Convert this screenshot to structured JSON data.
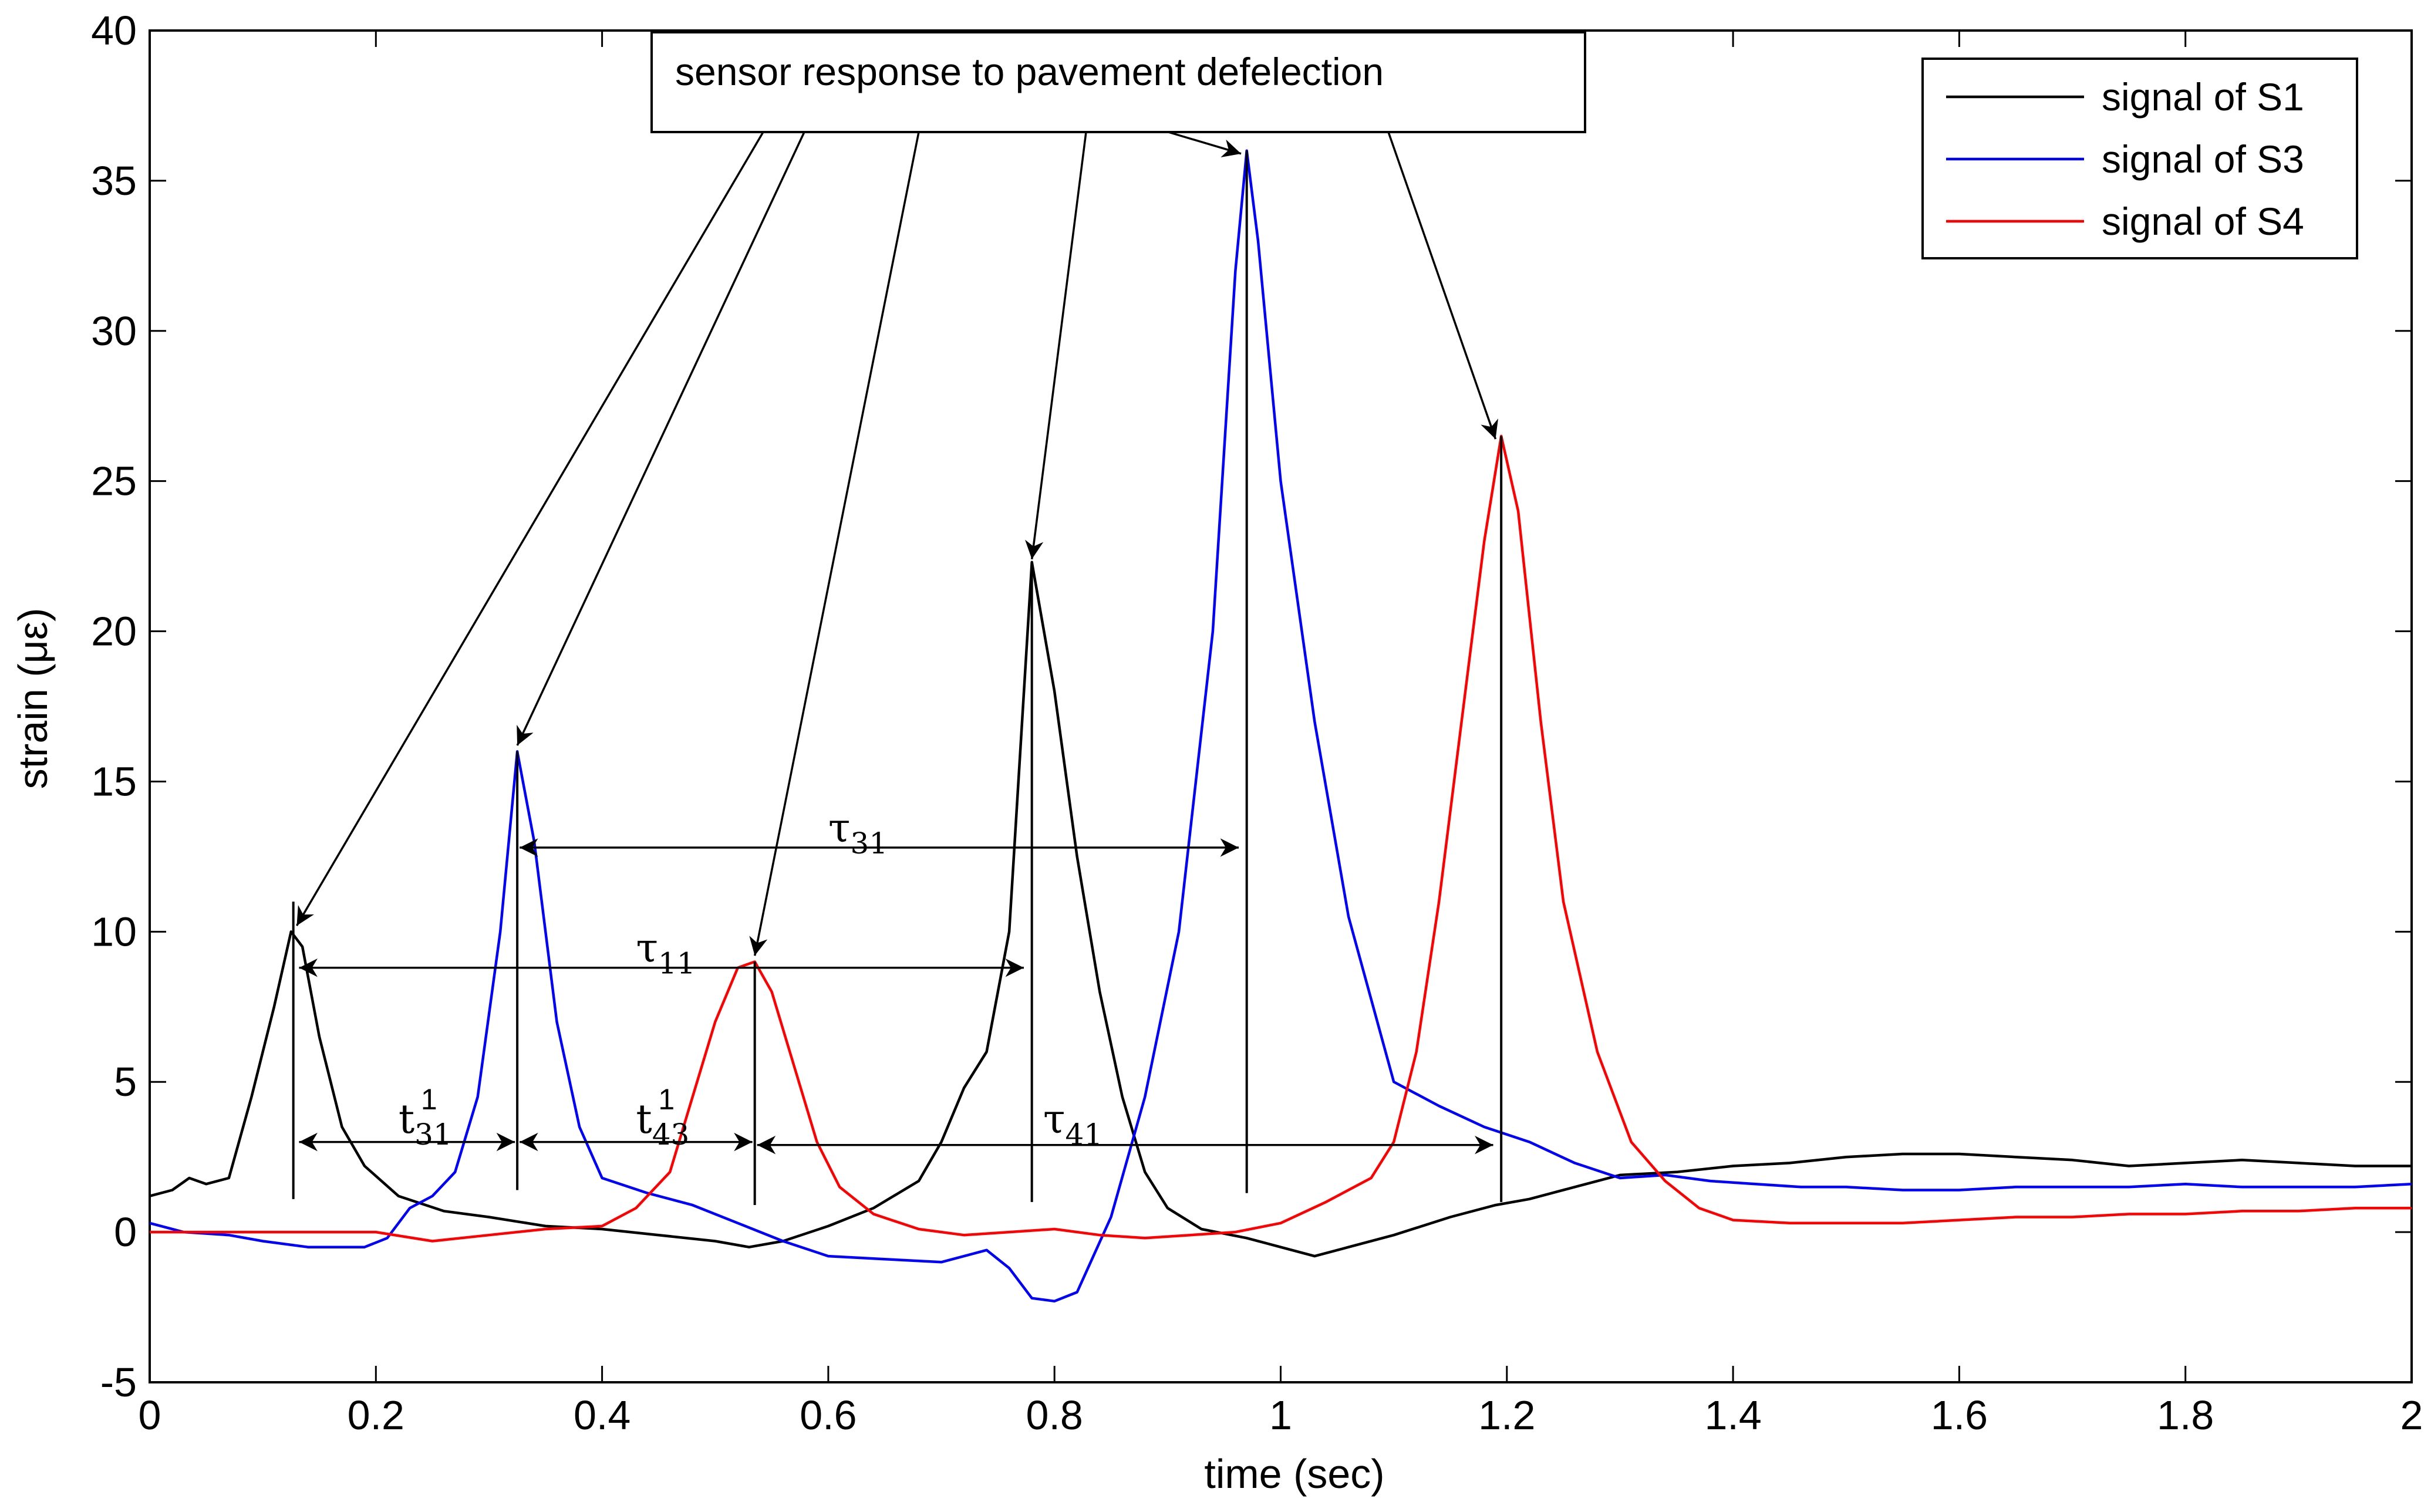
{
  "chart_data": {
    "type": "line",
    "title": "",
    "xlabel": "time (sec)",
    "ylabel": "strain  (με)",
    "xlim": [
      0,
      2
    ],
    "ylim": [
      -5,
      40
    ],
    "x_ticks": [
      0,
      0.2,
      0.4,
      0.6,
      0.8,
      1,
      1.2,
      1.4,
      1.6,
      1.8,
      2
    ],
    "y_ticks": [
      -5,
      0,
      5,
      10,
      15,
      20,
      25,
      30,
      35,
      40
    ],
    "x_tick_labels": [
      "0",
      "0.2",
      "0.4",
      "0.6",
      "0.8",
      "1",
      "1.2",
      "1.4",
      "1.6",
      "1.8",
      "2"
    ],
    "y_tick_labels": [
      "-5",
      "0",
      "5",
      "10",
      "15",
      "20",
      "25",
      "30",
      "35",
      "40"
    ],
    "grid": false,
    "legend_position": "top-right",
    "series": [
      {
        "name": "signal of S1",
        "color": "#000000",
        "points": [
          [
            0,
            1.2
          ],
          [
            0.02,
            1.4
          ],
          [
            0.035,
            1.8
          ],
          [
            0.05,
            1.6
          ],
          [
            0.07,
            1.8
          ],
          [
            0.09,
            4.5
          ],
          [
            0.11,
            7.5
          ],
          [
            0.125,
            10.0
          ],
          [
            0.135,
            9.5
          ],
          [
            0.15,
            6.5
          ],
          [
            0.17,
            3.5
          ],
          [
            0.19,
            2.2
          ],
          [
            0.22,
            1.2
          ],
          [
            0.26,
            0.7
          ],
          [
            0.3,
            0.5
          ],
          [
            0.35,
            0.2
          ],
          [
            0.4,
            0.1
          ],
          [
            0.45,
            -0.1
          ],
          [
            0.5,
            -0.3
          ],
          [
            0.53,
            -0.5
          ],
          [
            0.56,
            -0.3
          ],
          [
            0.6,
            0.2
          ],
          [
            0.64,
            0.8
          ],
          [
            0.68,
            1.7
          ],
          [
            0.7,
            3.0
          ],
          [
            0.72,
            4.8
          ],
          [
            0.74,
            6.0
          ],
          [
            0.76,
            10.0
          ],
          [
            0.78,
            22.3
          ],
          [
            0.8,
            18.0
          ],
          [
            0.82,
            12.5
          ],
          [
            0.84,
            8.0
          ],
          [
            0.86,
            4.5
          ],
          [
            0.88,
            2.0
          ],
          [
            0.9,
            0.8
          ],
          [
            0.93,
            0.1
          ],
          [
            0.97,
            -0.2
          ],
          [
            1.0,
            -0.5
          ],
          [
            1.03,
            -0.8
          ],
          [
            1.06,
            -0.5
          ],
          [
            1.1,
            -0.1
          ],
          [
            1.15,
            0.5
          ],
          [
            1.19,
            0.9
          ],
          [
            1.22,
            1.1
          ],
          [
            1.26,
            1.5
          ],
          [
            1.3,
            1.9
          ],
          [
            1.35,
            2.0
          ],
          [
            1.4,
            2.2
          ],
          [
            1.45,
            2.3
          ],
          [
            1.5,
            2.5
          ],
          [
            1.55,
            2.6
          ],
          [
            1.6,
            2.6
          ],
          [
            1.65,
            2.5
          ],
          [
            1.7,
            2.4
          ],
          [
            1.75,
            2.2
          ],
          [
            1.8,
            2.3
          ],
          [
            1.85,
            2.4
          ],
          [
            1.9,
            2.3
          ],
          [
            1.95,
            2.2
          ],
          [
            2.0,
            2.2
          ]
        ]
      },
      {
        "name": "signal of S3",
        "color": "#0000ff",
        "points": [
          [
            0,
            0.3
          ],
          [
            0.03,
            0.0
          ],
          [
            0.07,
            -0.1
          ],
          [
            0.1,
            -0.3
          ],
          [
            0.14,
            -0.5
          ],
          [
            0.19,
            -0.5
          ],
          [
            0.21,
            -0.2
          ],
          [
            0.23,
            0.8
          ],
          [
            0.25,
            1.2
          ],
          [
            0.27,
            2.0
          ],
          [
            0.29,
            4.5
          ],
          [
            0.31,
            10.0
          ],
          [
            0.325,
            16.0
          ],
          [
            0.34,
            13.0
          ],
          [
            0.36,
            7.0
          ],
          [
            0.38,
            3.5
          ],
          [
            0.4,
            1.8
          ],
          [
            0.44,
            1.3
          ],
          [
            0.48,
            0.9
          ],
          [
            0.52,
            0.3
          ],
          [
            0.56,
            -0.3
          ],
          [
            0.6,
            -0.8
          ],
          [
            0.65,
            -0.9
          ],
          [
            0.7,
            -1.0
          ],
          [
            0.74,
            -0.6
          ],
          [
            0.76,
            -1.2
          ],
          [
            0.78,
            -2.2
          ],
          [
            0.8,
            -2.3
          ],
          [
            0.82,
            -2.0
          ],
          [
            0.85,
            0.5
          ],
          [
            0.88,
            4.5
          ],
          [
            0.91,
            10.0
          ],
          [
            0.94,
            20.0
          ],
          [
            0.96,
            32.0
          ],
          [
            0.97,
            36.0
          ],
          [
            0.98,
            33.0
          ],
          [
            1.0,
            25.0
          ],
          [
            1.03,
            17.0
          ],
          [
            1.06,
            10.5
          ],
          [
            1.1,
            5.0
          ],
          [
            1.14,
            4.2
          ],
          [
            1.18,
            3.5
          ],
          [
            1.22,
            3.0
          ],
          [
            1.26,
            2.3
          ],
          [
            1.3,
            1.8
          ],
          [
            1.34,
            1.9
          ],
          [
            1.38,
            1.7
          ],
          [
            1.42,
            1.6
          ],
          [
            1.46,
            1.5
          ],
          [
            1.5,
            1.5
          ],
          [
            1.55,
            1.4
          ],
          [
            1.6,
            1.4
          ],
          [
            1.65,
            1.5
          ],
          [
            1.7,
            1.5
          ],
          [
            1.75,
            1.5
          ],
          [
            1.8,
            1.6
          ],
          [
            1.85,
            1.5
          ],
          [
            1.9,
            1.5
          ],
          [
            1.95,
            1.5
          ],
          [
            2.0,
            1.6
          ]
        ]
      },
      {
        "name": "signal of S4",
        "color": "#ff0000",
        "points": [
          [
            0,
            0.0
          ],
          [
            0.05,
            0.0
          ],
          [
            0.1,
            0.0
          ],
          [
            0.15,
            0.0
          ],
          [
            0.2,
            0.0
          ],
          [
            0.25,
            -0.3
          ],
          [
            0.3,
            -0.1
          ],
          [
            0.35,
            0.1
          ],
          [
            0.4,
            0.2
          ],
          [
            0.43,
            0.8
          ],
          [
            0.46,
            2.0
          ],
          [
            0.48,
            4.5
          ],
          [
            0.5,
            7.0
          ],
          [
            0.52,
            8.8
          ],
          [
            0.535,
            9.0
          ],
          [
            0.55,
            8.0
          ],
          [
            0.57,
            5.5
          ],
          [
            0.59,
            3.0
          ],
          [
            0.61,
            1.5
          ],
          [
            0.64,
            0.6
          ],
          [
            0.68,
            0.1
          ],
          [
            0.72,
            -0.1
          ],
          [
            0.76,
            0.0
          ],
          [
            0.8,
            0.1
          ],
          [
            0.84,
            -0.1
          ],
          [
            0.88,
            -0.2
          ],
          [
            0.92,
            -0.1
          ],
          [
            0.96,
            0.0
          ],
          [
            1.0,
            0.3
          ],
          [
            1.04,
            1.0
          ],
          [
            1.08,
            1.8
          ],
          [
            1.1,
            3.0
          ],
          [
            1.12,
            6.0
          ],
          [
            1.14,
            11.0
          ],
          [
            1.16,
            17.0
          ],
          [
            1.18,
            23.0
          ],
          [
            1.195,
            26.5
          ],
          [
            1.21,
            24.0
          ],
          [
            1.23,
            17.0
          ],
          [
            1.25,
            11.0
          ],
          [
            1.28,
            6.0
          ],
          [
            1.31,
            3.0
          ],
          [
            1.34,
            1.7
          ],
          [
            1.37,
            0.8
          ],
          [
            1.4,
            0.4
          ],
          [
            1.45,
            0.3
          ],
          [
            1.5,
            0.3
          ],
          [
            1.55,
            0.3
          ],
          [
            1.6,
            0.4
          ],
          [
            1.65,
            0.5
          ],
          [
            1.7,
            0.5
          ],
          [
            1.75,
            0.6
          ],
          [
            1.8,
            0.6
          ],
          [
            1.85,
            0.7
          ],
          [
            1.9,
            0.7
          ],
          [
            1.95,
            0.8
          ],
          [
            2.0,
            0.8
          ]
        ]
      }
    ],
    "annotations": {
      "box_label": "sensor response to pavement defelection",
      "peak_arrow_targets": [
        [
          0.13,
          10.2
        ],
        [
          0.325,
          16.2
        ],
        [
          0.535,
          9.2
        ],
        [
          0.78,
          22.4
        ],
        [
          0.965,
          35.9
        ],
        [
          1.19,
          26.4
        ]
      ],
      "vertical_markers": [
        {
          "x": 0.127,
          "y_bottom": 1.1,
          "y_top": 11.0
        },
        {
          "x": 0.325,
          "y_bottom": 1.4,
          "y_top": 16.0
        },
        {
          "x": 0.535,
          "y_bottom": 0.9,
          "y_top": 9.0
        },
        {
          "x": 0.78,
          "y_bottom": 1.0,
          "y_top": 22.3
        },
        {
          "x": 0.97,
          "y_bottom": 1.3,
          "y_top": 36.0
        },
        {
          "x": 1.195,
          "y_bottom": 1.0,
          "y_top": 26.5
        }
      ],
      "intervals": [
        {
          "symbol": "τ",
          "sub": "31",
          "sup": "",
          "x1": 0.325,
          "x2": 0.965,
          "y": 12.8,
          "label_x": 0.6,
          "label_y": 13.0
        },
        {
          "symbol": "τ",
          "sub": "11",
          "sup": "",
          "x1": 0.13,
          "x2": 0.775,
          "y": 8.8,
          "label_x": 0.43,
          "label_y": 9.0
        },
        {
          "symbol": "t",
          "sub": "31",
          "sup": "1",
          "x1": 0.13,
          "x2": 0.325,
          "y": 3.0,
          "label_x": 0.22,
          "label_y": 3.3
        },
        {
          "symbol": "t",
          "sub": "43",
          "sup": "1",
          "x1": 0.325,
          "x2": 0.535,
          "y": 3.0,
          "label_x": 0.43,
          "label_y": 3.3
        },
        {
          "symbol": "τ",
          "sub": "41",
          "sup": "",
          "x1": 0.535,
          "x2": 1.19,
          "y": 2.9,
          "label_x": 0.79,
          "label_y": 3.3
        }
      ]
    }
  }
}
